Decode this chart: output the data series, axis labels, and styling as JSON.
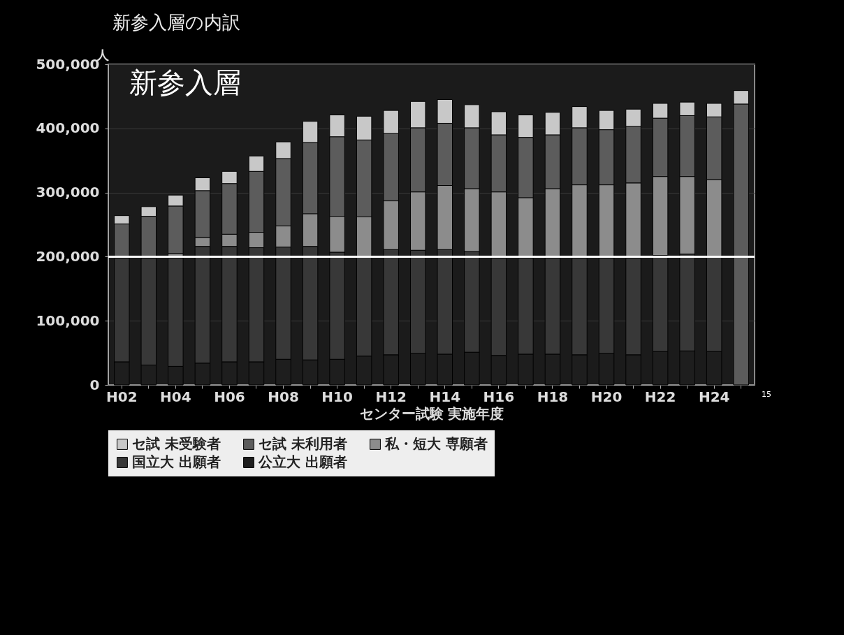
{
  "chart_data": {
    "type": "bar",
    "title": "新参入層の内訳",
    "xlabel": "センター試験 実施年度",
    "ylabel": "人",
    "categories": [
      "H02",
      null,
      "H04",
      null,
      "H06",
      null,
      "H08",
      null,
      "H10",
      null,
      "H12",
      null,
      "H14",
      null,
      "H16",
      null,
      "H18",
      null,
      "H20",
      null,
      "H22",
      null,
      "H24",
      null
    ],
    "stacked": true,
    "series": [
      {
        "name": "公立大 出願者",
        "color": "#1e1e1e",
        "values": [
          36000,
          31000,
          29000,
          34000,
          36000,
          36000,
          40000,
          39000,
          40000,
          45000,
          47000,
          49000,
          48000,
          51000,
          46000,
          48000,
          48000,
          47000,
          49000,
          47000,
          52000,
          53000,
          52000,
          null
        ]
      },
      {
        "name": "国立大 出願者",
        "color": "#383838",
        "values": [
          162000,
          167000,
          169000,
          182000,
          180000,
          178000,
          175000,
          177000,
          167000,
          156000,
          164000,
          161000,
          163000,
          157000,
          152000,
          150000,
          150000,
          151000,
          149000,
          151000,
          150000,
          151000,
          149000,
          null
        ]
      },
      {
        "name": "私・短大 専願者",
        "color": "#8c8c8c",
        "values": [
          0,
          0,
          7000,
          14000,
          19000,
          24000,
          33000,
          51000,
          56000,
          61000,
          76000,
          91000,
          100000,
          98000,
          103000,
          94000,
          108000,
          114000,
          114000,
          117000,
          123000,
          121000,
          119000,
          null
        ]
      },
      {
        "name": "セ試 未利用者",
        "color": "#5c5c5c",
        "values": [
          53000,
          65000,
          74000,
          73000,
          79000,
          95000,
          105000,
          111000,
          124000,
          120000,
          105000,
          100000,
          97000,
          95000,
          89000,
          94000,
          84000,
          89000,
          86000,
          88000,
          91000,
          95000,
          98000,
          438000
        ]
      },
      {
        "name": "セ試 未受験者",
        "color": "#c8c8c8",
        "values": [
          13000,
          15000,
          17000,
          20000,
          19000,
          24000,
          26000,
          33000,
          34000,
          37000,
          36000,
          41000,
          37000,
          36000,
          36000,
          35000,
          35000,
          33000,
          30000,
          27000,
          23000,
          21000,
          21000,
          21000
        ]
      }
    ],
    "ylim": [
      0,
      500000
    ],
    "yticks": [
      0,
      {
        "value": 100000,
        "label": "100,000"
      },
      {
        "value": 200000,
        "label": "200,000"
      },
      {
        "value": 300000,
        "label": "300,000"
      },
      {
        "value": 400000,
        "label": "400,000"
      },
      {
        "value": 500000,
        "label": "500,000"
      }
    ],
    "grid": "y",
    "legend": "bottom",
    "ref_lines": [
      {
        "axis": "y",
        "value": 200000,
        "color": "#ffffff"
      }
    ],
    "annotations": [
      "新参入層",
      "15"
    ]
  }
}
